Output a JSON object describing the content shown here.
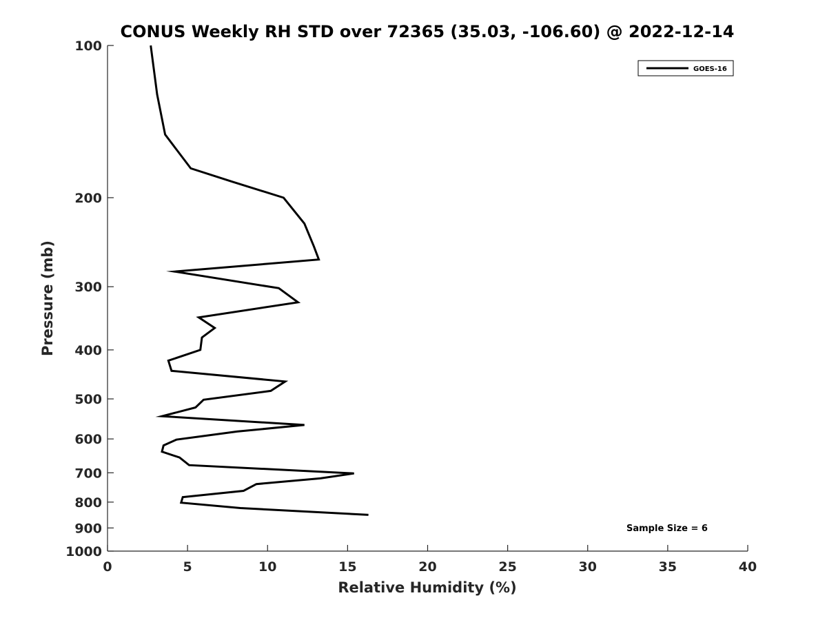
{
  "chart_data": {
    "type": "line",
    "title": "CONUS Weekly RH STD over 72365 (35.03, -106.60) @ 2022-12-14",
    "xlabel": "Relative Humidity (%)",
    "ylabel": "Pressure (mb)",
    "xlim": [
      0,
      40
    ],
    "ylim": [
      100,
      1000
    ],
    "yscale": "log",
    "y_reversed": true,
    "xticks": [
      0,
      5,
      10,
      15,
      20,
      25,
      30,
      35,
      40
    ],
    "xtick_labels": [
      "0",
      "5",
      "10",
      "15",
      "20",
      "25",
      "30",
      "35",
      "40"
    ],
    "yticks": [
      100,
      200,
      300,
      400,
      500,
      600,
      700,
      800,
      900,
      1000
    ],
    "ytick_labels": [
      "100",
      "200",
      "300",
      "400",
      "500",
      "600",
      "700",
      "800",
      "900",
      "1000"
    ],
    "grid": false,
    "legend_position": "top-right",
    "annotation": "Sample Size = 6",
    "series": [
      {
        "name": "GOES-16",
        "color": "#000000",
        "points": [
          {
            "x": 2.7,
            "y": 100
          },
          {
            "x": 3.1,
            "y": 125
          },
          {
            "x": 3.6,
            "y": 150
          },
          {
            "x": 5.2,
            "y": 175
          },
          {
            "x": 7.8,
            "y": 186
          },
          {
            "x": 11.0,
            "y": 200
          },
          {
            "x": 12.3,
            "y": 225
          },
          {
            "x": 12.9,
            "y": 250
          },
          {
            "x": 13.2,
            "y": 265
          },
          {
            "x": 4.2,
            "y": 280
          },
          {
            "x": 10.7,
            "y": 302
          },
          {
            "x": 11.9,
            "y": 322
          },
          {
            "x": 5.7,
            "y": 345
          },
          {
            "x": 6.7,
            "y": 362
          },
          {
            "x": 5.9,
            "y": 378
          },
          {
            "x": 5.8,
            "y": 400
          },
          {
            "x": 3.8,
            "y": 420
          },
          {
            "x": 4.0,
            "y": 440
          },
          {
            "x": 11.1,
            "y": 462
          },
          {
            "x": 10.2,
            "y": 482
          },
          {
            "x": 6.0,
            "y": 502
          },
          {
            "x": 5.5,
            "y": 520
          },
          {
            "x": 3.4,
            "y": 541
          },
          {
            "x": 12.3,
            "y": 563
          },
          {
            "x": 8.1,
            "y": 580
          },
          {
            "x": 4.3,
            "y": 602
          },
          {
            "x": 3.5,
            "y": 618
          },
          {
            "x": 3.4,
            "y": 636
          },
          {
            "x": 4.5,
            "y": 653
          },
          {
            "x": 5.1,
            "y": 676
          },
          {
            "x": 15.4,
            "y": 702
          },
          {
            "x": 13.3,
            "y": 718
          },
          {
            "x": 9.3,
            "y": 737
          },
          {
            "x": 8.5,
            "y": 760
          },
          {
            "x": 4.7,
            "y": 782
          },
          {
            "x": 4.6,
            "y": 802
          },
          {
            "x": 8.3,
            "y": 822
          },
          {
            "x": 16.3,
            "y": 848
          }
        ]
      }
    ]
  }
}
